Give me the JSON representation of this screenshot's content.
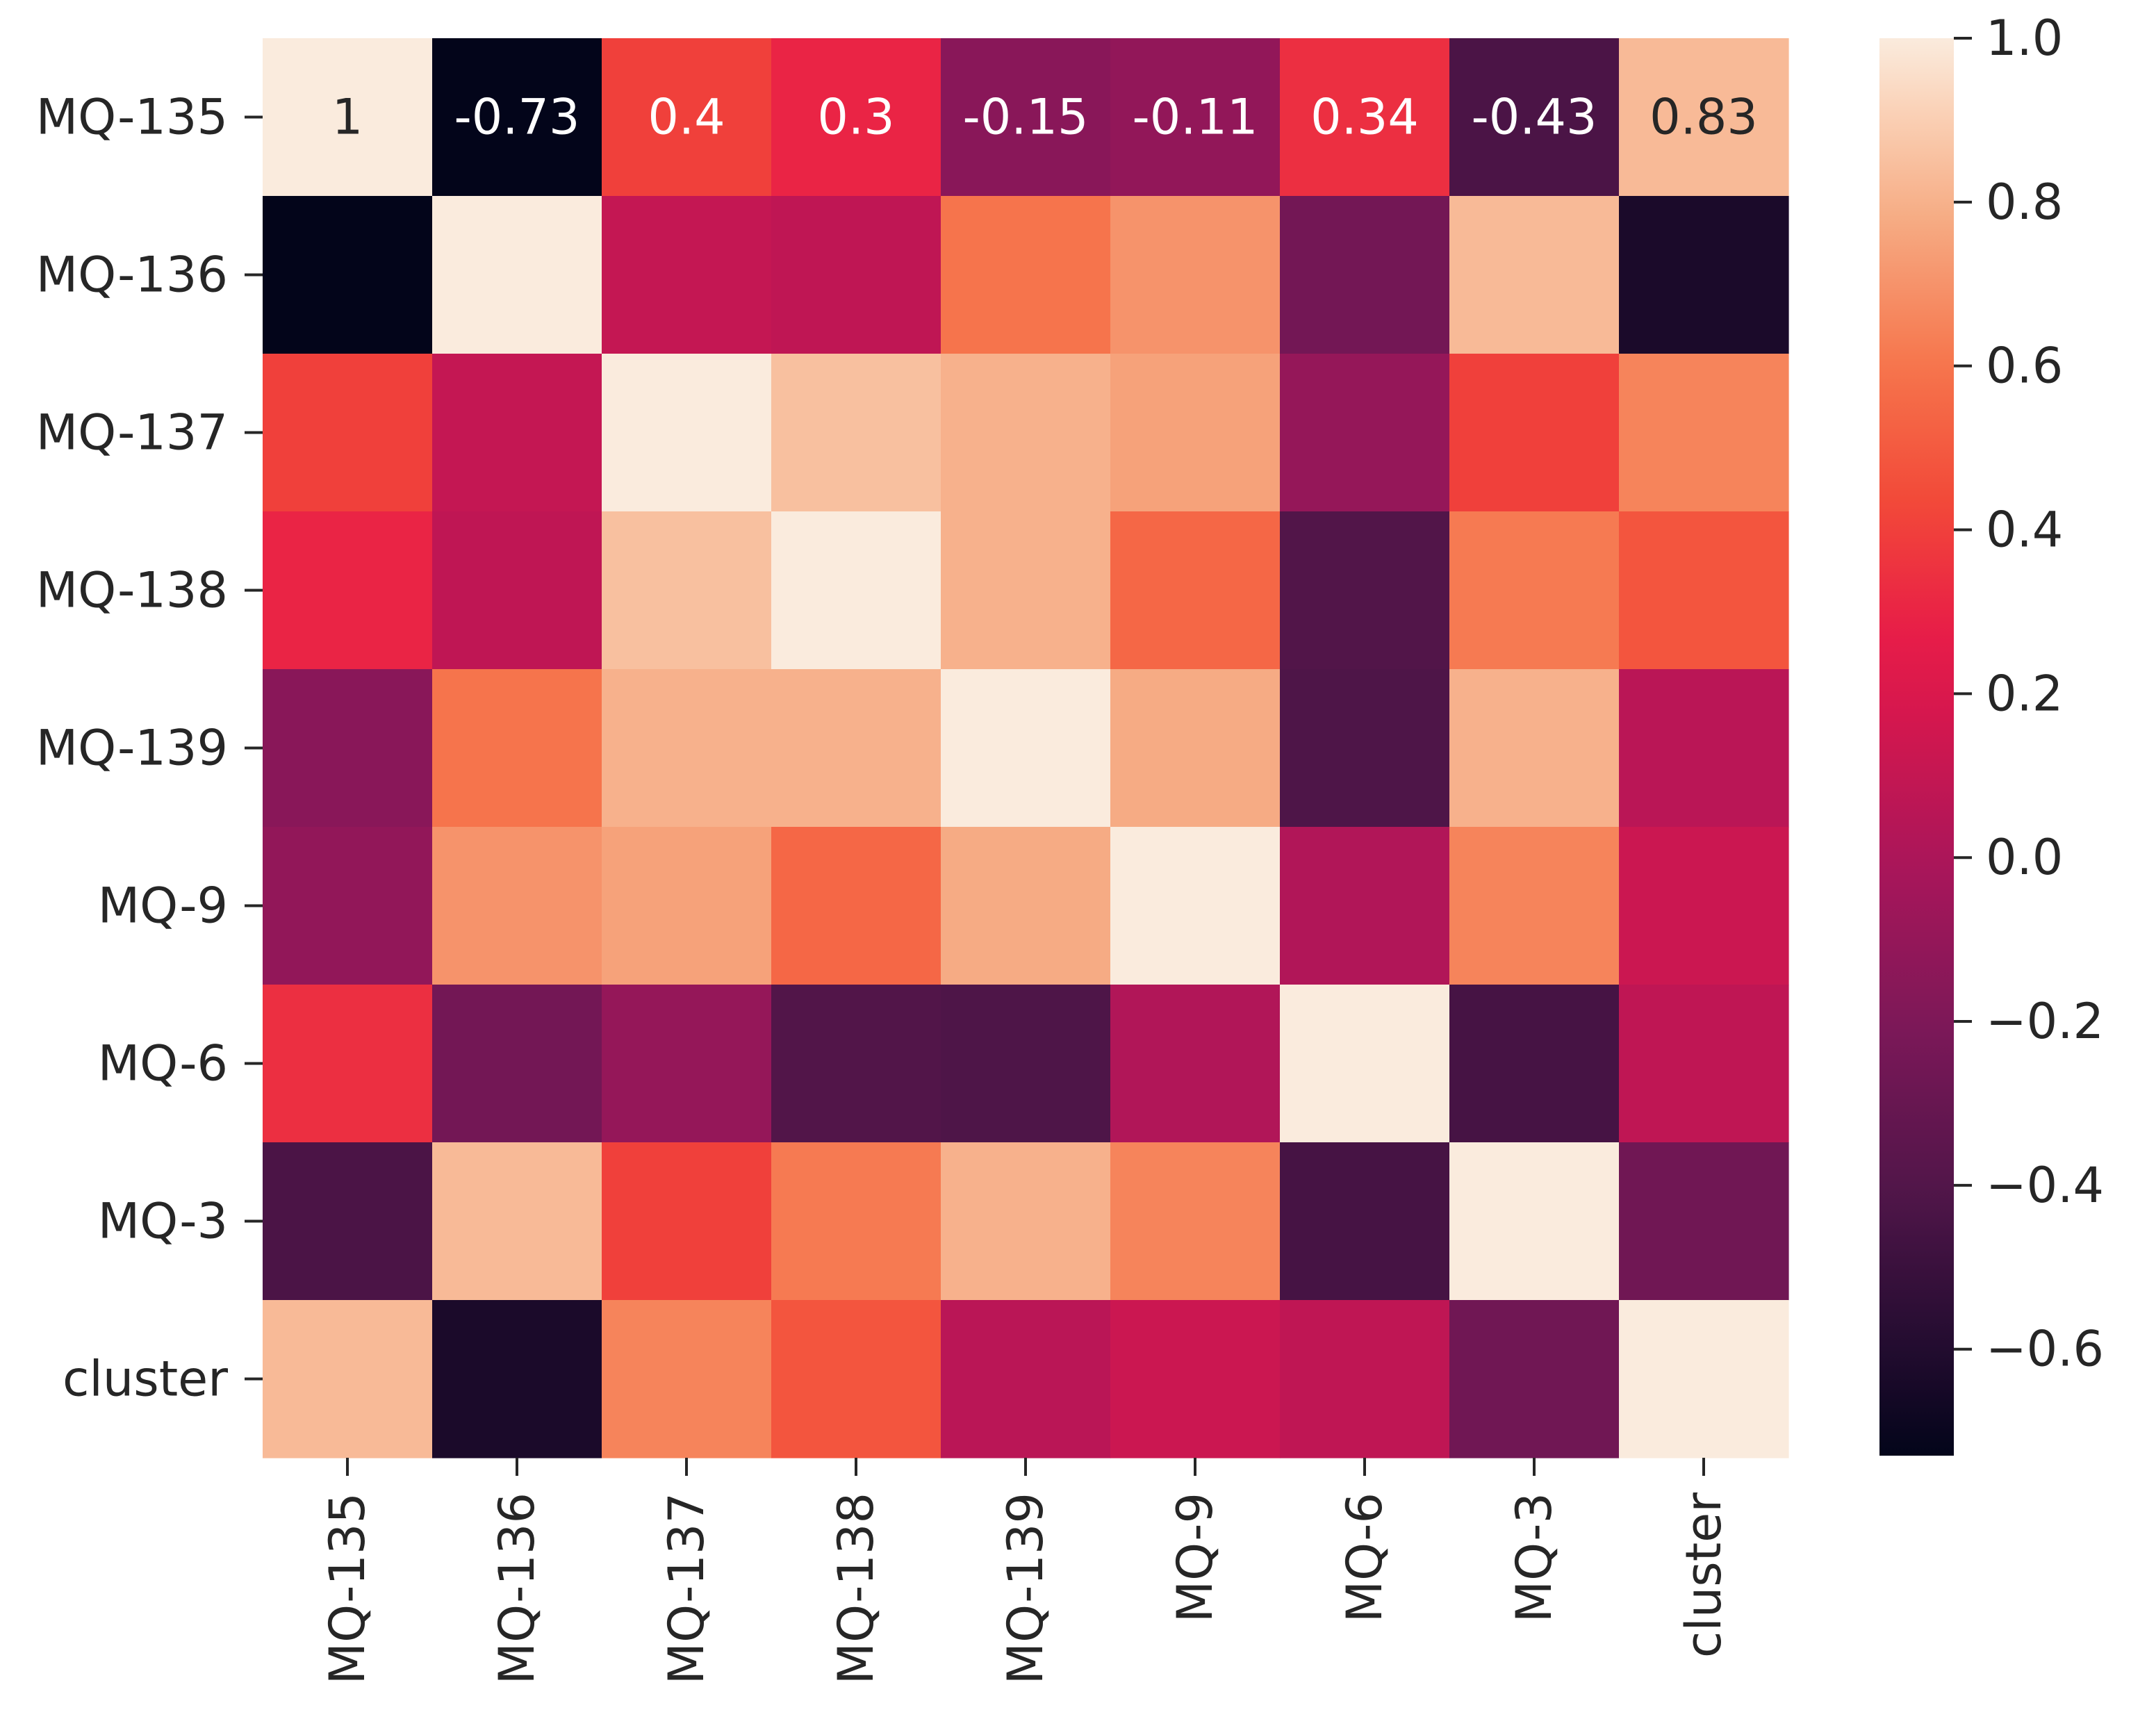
{
  "chart_data": {
    "type": "heatmap",
    "title": "",
    "xlabel": "",
    "ylabel": "",
    "x_labels": [
      "MQ-135",
      "MQ-136",
      "MQ-137",
      "MQ-138",
      "MQ-139",
      "MQ-9",
      "MQ-6",
      "MQ-3",
      "cluster"
    ],
    "y_labels": [
      "MQ-135",
      "MQ-136",
      "MQ-137",
      "MQ-138",
      "MQ-139",
      "MQ-9",
      "MQ-6",
      "MQ-3",
      "cluster"
    ],
    "matrix": [
      [
        1.0,
        -0.73,
        0.4,
        0.3,
        -0.15,
        -0.11,
        0.34,
        -0.43,
        0.83
      ],
      [
        -0.73,
        1.0,
        0.1,
        0.08,
        0.6,
        0.7,
        -0.25,
        0.83,
        -0.63
      ],
      [
        0.4,
        0.1,
        1.0,
        0.85,
        0.8,
        0.75,
        -0.1,
        0.4,
        0.65
      ],
      [
        0.3,
        0.08,
        0.85,
        1.0,
        0.8,
        0.55,
        -0.4,
        0.62,
        0.48
      ],
      [
        -0.15,
        0.6,
        0.8,
        0.8,
        1.0,
        0.78,
        -0.42,
        0.8,
        0.06
      ],
      [
        -0.11,
        0.7,
        0.75,
        0.55,
        0.78,
        1.0,
        0.02,
        0.65,
        0.13
      ],
      [
        0.34,
        -0.25,
        -0.1,
        -0.4,
        -0.42,
        0.02,
        1.0,
        -0.45,
        0.08
      ],
      [
        -0.43,
        0.83,
        0.4,
        0.62,
        0.8,
        0.65,
        -0.45,
        1.0,
        -0.26
      ],
      [
        0.83,
        -0.63,
        0.65,
        0.48,
        0.06,
        0.13,
        0.08,
        -0.26,
        1.0
      ]
    ],
    "annotations": [
      {
        "row": 0,
        "col": 0,
        "text": "1",
        "color": "#262626"
      },
      {
        "row": 0,
        "col": 1,
        "text": "-0.73",
        "color": "#ffffff"
      },
      {
        "row": 0,
        "col": 2,
        "text": "0.4",
        "color": "#ffffff"
      },
      {
        "row": 0,
        "col": 3,
        "text": "0.3",
        "color": "#ffffff"
      },
      {
        "row": 0,
        "col": 4,
        "text": "-0.15",
        "color": "#ffffff"
      },
      {
        "row": 0,
        "col": 5,
        "text": "-0.11",
        "color": "#ffffff"
      },
      {
        "row": 0,
        "col": 6,
        "text": "0.34",
        "color": "#ffffff"
      },
      {
        "row": 0,
        "col": 7,
        "text": "-0.43",
        "color": "#ffffff"
      },
      {
        "row": 0,
        "col": 8,
        "text": "0.83",
        "color": "#262626"
      }
    ],
    "colormap": "rocket",
    "colorbar": {
      "vmin": -0.73,
      "vmax": 1.0,
      "ticks": [
        1.0,
        0.8,
        0.6,
        0.4,
        0.2,
        0.0,
        -0.2,
        -0.4,
        -0.6
      ],
      "tick_labels": [
        "1.0",
        "0.8",
        "0.6",
        "0.4",
        "0.2",
        "0.0",
        "−0.2",
        "−0.4",
        "−0.6"
      ]
    }
  }
}
